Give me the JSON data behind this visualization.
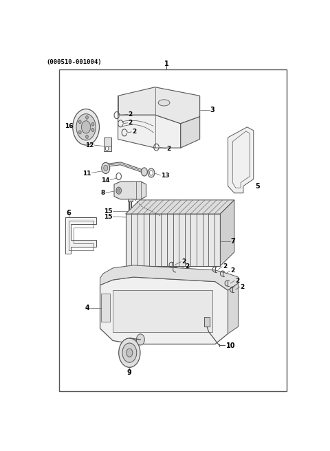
{
  "title": "(000510-001004)",
  "background_color": "#ffffff",
  "border_color": "#555555",
  "line_color": "#555555",
  "text_color": "#000000",
  "fig_width": 4.8,
  "fig_height": 6.56,
  "dpi": 100,
  "border": [
    0.07,
    0.03,
    0.96,
    0.955
  ]
}
